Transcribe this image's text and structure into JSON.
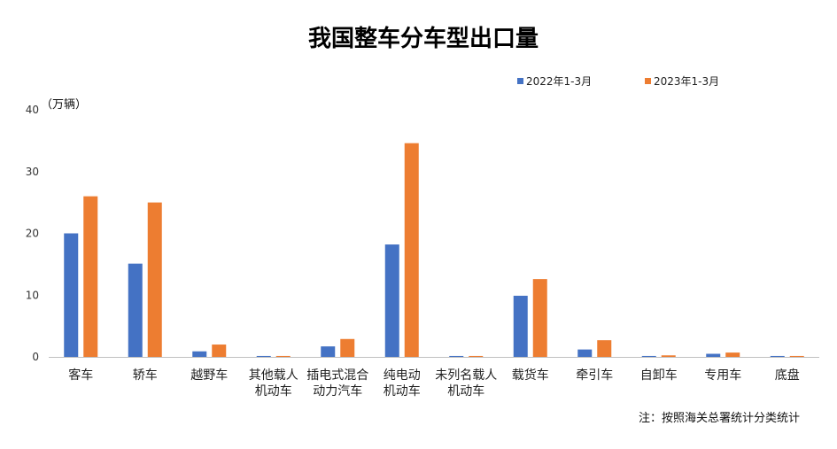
{
  "chart_data": {
    "type": "bar",
    "title": "我国整车分车型出口量",
    "ylabel": "（万辆）",
    "ylim": [
      0,
      40
    ],
    "yticks": [
      0,
      10,
      20,
      30,
      40
    ],
    "grid": false,
    "legend_position": "top-right",
    "categories": [
      [
        "客车"
      ],
      [
        "轿车"
      ],
      [
        "越野车"
      ],
      [
        "其他载人",
        "机动车"
      ],
      [
        "插电式混合",
        "动力汽车"
      ],
      [
        "纯电动",
        "机动车"
      ],
      [
        "未列名载人",
        "机动车"
      ],
      [
        "载货车"
      ],
      [
        "牵引车"
      ],
      [
        "自卸车"
      ],
      [
        "专用车"
      ],
      [
        "底盘"
      ]
    ],
    "series": [
      {
        "name": "2022年1-3月",
        "color": "#4472C4",
        "values": [
          20.0,
          15.1,
          0.9,
          0.15,
          1.7,
          18.2,
          0.15,
          9.9,
          1.2,
          0.15,
          0.5,
          0.15
        ]
      },
      {
        "name": "2023年1-3月",
        "color": "#ED7D31",
        "values": [
          26.0,
          25.0,
          2.0,
          0.15,
          2.9,
          34.6,
          0.15,
          12.6,
          2.7,
          0.25,
          0.7,
          0.15
        ]
      }
    ],
    "note": "注：按照海关总署统计分类统计"
  }
}
